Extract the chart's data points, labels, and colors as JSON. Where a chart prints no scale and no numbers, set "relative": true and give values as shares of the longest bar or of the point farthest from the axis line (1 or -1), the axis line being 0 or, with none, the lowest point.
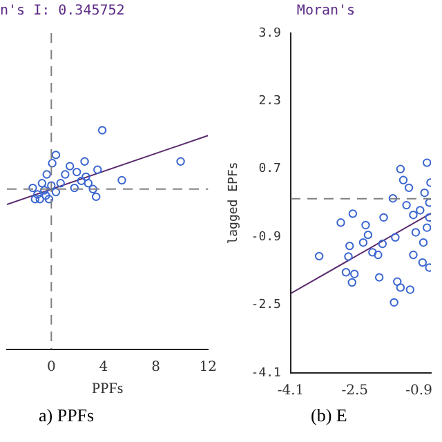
{
  "chart_data": [
    {
      "type": "scatter",
      "title": "n's I: 0.345752",
      "xlabel": "PPFs",
      "relative": true,
      "tick_labels": "x",
      "xlim": [
        -3.4,
        12
      ],
      "xticks": [
        0,
        4,
        8,
        12
      ],
      "grid": false,
      "legend": false,
      "marker": "circle",
      "annotations": [
        "a) PPFs"
      ],
      "ref_lines": [
        {
          "axis": "x",
          "value": 0,
          "color": "#808080",
          "line_style": "dashed"
        },
        {
          "axis": "y",
          "value": 0,
          "color": "#808080",
          "line_style": "dashed"
        }
      ],
      "series": [
        {
          "type": "scatter",
          "color": "#3a66d0",
          "x": [
            3.9,
            9.9,
            5.4,
            2.55,
            0.35,
            0.07,
            3.54,
            3.43,
            1.42,
            1.95,
            2.83,
            3.19,
            1.06,
            0.71,
            -0.35,
            -0.71,
            -1.06,
            -0.88,
            -0.18,
            0.35,
            -1.42,
            -0.53,
            0,
            1.77,
            2.3,
            2.65,
            -0.42,
            -1.24
          ],
          "values": [
            1,
            0.47,
            0.15,
            0.47,
            0.58,
            0.44,
            0.33,
            -0.13,
            0.39,
            0.29,
            0.1,
            0,
            0.25,
            0.1,
            0.25,
            0.1,
            -0.09,
            -0.17,
            -0.17,
            -0.05,
            0.02,
            -0.02,
            0.06,
            0.02,
            0.14,
            0.21,
            -0.11,
            -0.17
          ]
        },
        {
          "type": "line",
          "color": "#5a2a6e",
          "marker": "none",
          "x": [
            -3.4,
            12
          ],
          "values": [
            -0.26,
            0.91
          ]
        }
      ]
    },
    {
      "type": "scatter",
      "title": "Moran's",
      "ylabel": "lagged EPFs",
      "xlim": [
        -4.1,
        -0.6
      ],
      "xticks": [
        -4.1,
        -2.5,
        -0.9
      ],
      "ylim": [
        -4.1,
        3.9
      ],
      "yticks": [
        -4.1,
        -2.5,
        -0.9,
        0.7,
        2.3,
        3.9
      ],
      "grid": false,
      "legend": false,
      "marker": "circle",
      "annotations": [
        "(b) E"
      ],
      "ref_lines": [
        {
          "axis": "y",
          "value": 0,
          "color": "#808080",
          "line_style": "dashed"
        }
      ],
      "series": [
        {
          "type": "scatter",
          "color": "#3a66d0",
          "x": [
            -3.39,
            -2.85,
            -2.55,
            -2.63,
            -2.66,
            -2.72,
            -2.57,
            -2.51,
            -2.23,
            -2.17,
            -2.06,
            -2.29,
            -1.92,
            -1.89,
            -1.78,
            -1.81,
            -1.49,
            -1.52,
            -1.44,
            -1.36,
            -1.12,
            -1.55,
            -1.36,
            -1.29,
            -1.15,
            -1.21,
            -1.04,
            -1.04,
            -0.98,
            -0.81,
            -0.7,
            -0.76,
            -0.87,
            -0.7,
            -0.79,
            -0.64,
            -0.61,
            -0.64,
            -0.64
          ],
          "values": [
            -1.35,
            -0.56,
            -0.35,
            -1.11,
            -1.36,
            -1.73,
            -1.97,
            -1.77,
            -0.62,
            -0.85,
            -1.26,
            -1.03,
            -1.32,
            -1.85,
            -0.44,
            -1.06,
            -0.91,
            -2.44,
            -1.95,
            -2.09,
            -2.14,
            0.01,
            0.7,
            0.44,
            0.26,
            -0.15,
            -0.38,
            -1.32,
            -0.79,
            -1.5,
            0.85,
            0.14,
            -0.27,
            -0.68,
            -1.03,
            -1.62,
            0.38,
            -0.09,
            -0.44
          ]
        },
        {
          "type": "line",
          "color": "#5a2a6e",
          "marker": "none",
          "x": [
            -4.1,
            -0.6
          ],
          "values": [
            -2.23,
            -0.34
          ]
        }
      ]
    }
  ]
}
